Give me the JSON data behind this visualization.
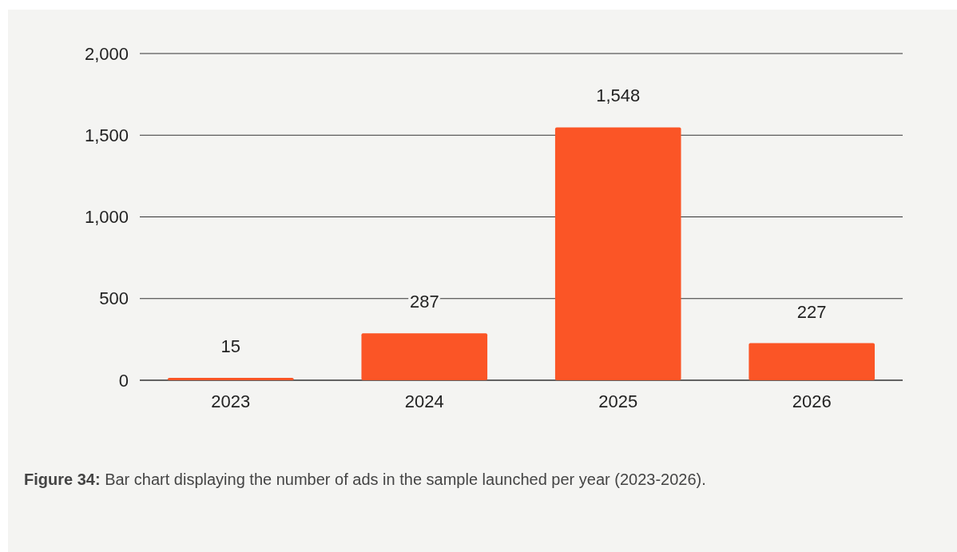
{
  "chart_data": {
    "type": "bar",
    "categories": [
      "2023",
      "2024",
      "2025",
      "2026"
    ],
    "values": [
      15,
      287,
      1548,
      227
    ],
    "color": "#fb5526",
    "ylim": [
      0,
      2000
    ],
    "yticks": [
      0,
      {
        "value": 500,
        "label": "500"
      },
      {
        "value": 1000,
        "label": "1,000"
      },
      {
        "value": 1500,
        "label": "1,500"
      },
      {
        "value": 2000,
        "label": "2,000"
      }
    ],
    "grid": "y",
    "data_labels": true,
    "value_labels": [
      "15",
      "287",
      "1,548",
      "227"
    ],
    "annotations": [
      "Figure 34: Bar chart displaying the number of ads in the sample launched per year (2023-2026)."
    ]
  }
}
